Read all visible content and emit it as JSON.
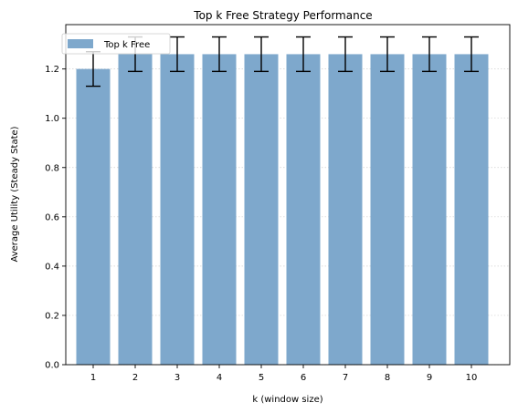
{
  "chart_data": {
    "type": "bar",
    "title": "Top k Free Strategy Performance",
    "xlabel": "k (window size)",
    "ylabel": "Average Utility (Steady State)",
    "categories": [
      "1",
      "2",
      "3",
      "4",
      "5",
      "6",
      "7",
      "8",
      "9",
      "10"
    ],
    "series": [
      {
        "name": "Top k Free",
        "values": [
          1.2,
          1.26,
          1.26,
          1.26,
          1.26,
          1.26,
          1.26,
          1.26,
          1.26,
          1.26
        ],
        "error": [
          0.07,
          0.07,
          0.07,
          0.07,
          0.07,
          0.07,
          0.07,
          0.07,
          0.07,
          0.07
        ]
      }
    ],
    "ylim": [
      0,
      1.38
    ],
    "yticks": [
      "0.0",
      "0.2",
      "0.4",
      "0.6",
      "0.8",
      "1.0",
      "1.2"
    ],
    "ytick_values": [
      0,
      0.2,
      0.4,
      0.6,
      0.8,
      1.0,
      1.2
    ],
    "grid": "horizontal dotted",
    "legend_position": "top-left",
    "colors": {
      "bar": "#7ea8cc",
      "error": "#000000",
      "grid": "#d0d0d0"
    }
  }
}
